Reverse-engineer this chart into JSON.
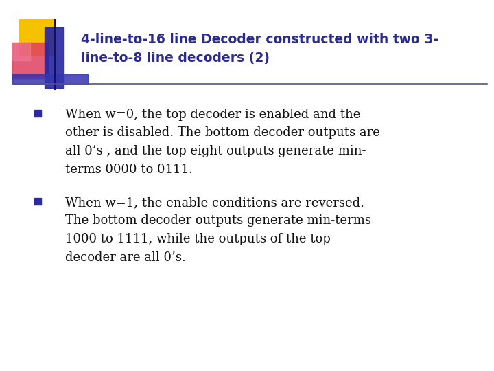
{
  "bg_color": "#ffffff",
  "title_line1": "4-line-to-16 line Decoder constructed with two 3-",
  "title_line2": "line-to-8 line decoders (2)",
  "title_color": "#2b2b8f",
  "title_fontsize": 13.5,
  "bullet1_lines": [
    "When w=0, the top decoder is enabled and the",
    "other is disabled. The bottom decoder outputs are",
    "all 0’s , and the top eight outputs generate min-",
    "terms 0000 to 0111."
  ],
  "bullet2_lines": [
    "When w=1, the enable conditions are reversed.",
    "The bottom decoder outputs generate min-terms",
    "1000 to 1111, while the outputs of the top",
    "decoder are all 0’s."
  ],
  "body_color": "#111111",
  "body_fontsize": 13.0,
  "bullet_color": "#2b2b9f",
  "header_bar_color": "#4444aa",
  "line_color": "#888899"
}
